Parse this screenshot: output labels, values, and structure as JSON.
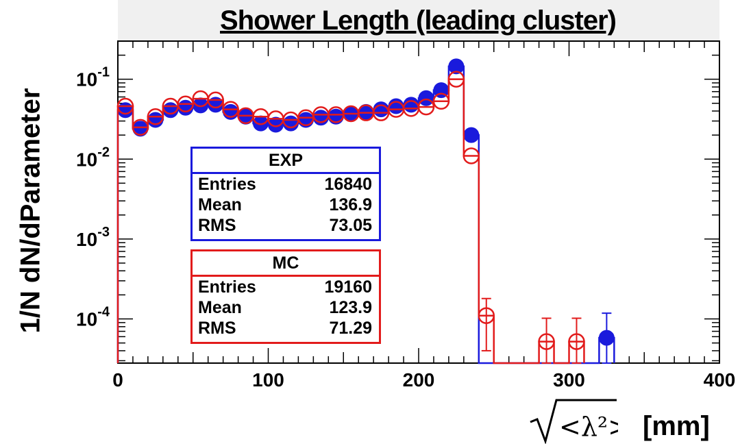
{
  "chart_data": {
    "type": "scatter",
    "title": "Shower Length (leading cluster)",
    "ylabel": "1/N dN/dParameter",
    "xlabel_units": "[mm]",
    "xlabel_symbol": "sqrt(<λ²>)",
    "xlim": [
      0,
      400
    ],
    "ylim": [
      2.8e-05,
      0.3
    ],
    "y_scale": "log",
    "x_ticks": [
      "0",
      "100",
      "200",
      "300",
      "400"
    ],
    "y_ticks": [
      {
        "base": "10",
        "exp": "-1"
      },
      {
        "base": "10",
        "exp": "-2"
      },
      {
        "base": "10",
        "exp": "-3"
      },
      {
        "base": "10",
        "exp": "-4"
      }
    ],
    "bin_width": 10,
    "series": [
      {
        "name": "EXP",
        "color": "#1a1adc",
        "marker": "filled-circle",
        "x": [
          5,
          15,
          25,
          35,
          45,
          55,
          65,
          75,
          85,
          95,
          105,
          115,
          125,
          135,
          145,
          155,
          165,
          175,
          185,
          195,
          205,
          215,
          225,
          235,
          325
        ],
        "y": [
          0.041,
          0.024,
          0.031,
          0.041,
          0.044,
          0.047,
          0.048,
          0.039,
          0.034,
          0.028,
          0.027,
          0.028,
          0.031,
          0.033,
          0.034,
          0.037,
          0.039,
          0.042,
          0.046,
          0.048,
          0.058,
          0.073,
          0.145,
          0.02,
          5.8e-05
        ],
        "yerr": [
          0,
          0,
          0,
          0,
          0,
          0,
          0,
          0,
          0,
          0,
          0,
          0,
          0,
          0,
          0,
          0,
          0,
          0,
          0,
          0,
          0,
          0,
          0,
          0,
          6e-05
        ]
      },
      {
        "name": "MC",
        "color": "#e21b1b",
        "marker": "open-circle",
        "x": [
          5,
          15,
          25,
          35,
          45,
          55,
          65,
          75,
          85,
          95,
          105,
          115,
          125,
          135,
          145,
          155,
          165,
          175,
          185,
          195,
          205,
          215,
          225,
          235,
          245,
          285,
          305
        ],
        "y": [
          0.046,
          0.025,
          0.034,
          0.046,
          0.049,
          0.057,
          0.055,
          0.042,
          0.035,
          0.034,
          0.032,
          0.031,
          0.033,
          0.036,
          0.036,
          0.037,
          0.038,
          0.038,
          0.042,
          0.043,
          0.045,
          0.053,
          0.1,
          0.011,
          0.00011,
          5.2e-05,
          5.2e-05
        ],
        "yerr": [
          0,
          0,
          0,
          0,
          0,
          0,
          0,
          0,
          0,
          0,
          0,
          0,
          0,
          0,
          0,
          0,
          0,
          0,
          0,
          0,
          0,
          0,
          0,
          0,
          7e-05,
          5e-05,
          5e-05
        ]
      }
    ],
    "stats_boxes": [
      {
        "name": "EXP",
        "entries": "16840",
        "mean": "136.9",
        "rms": "73.05"
      },
      {
        "name": "MC",
        "entries": "19160",
        "mean": "123.9",
        "rms": "71.29"
      }
    ]
  },
  "labels": {
    "entries": "Entries",
    "mean": "Mean",
    "rms": "RMS"
  }
}
